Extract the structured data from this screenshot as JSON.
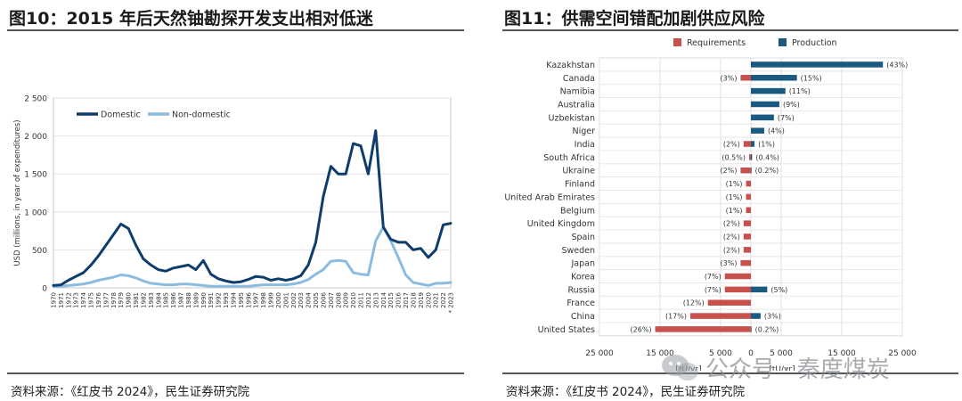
{
  "panels": [
    {
      "title": "图10：2015 年后天然铀勘探开发支出相对低迷",
      "source": "资料来源：《红皮书 2024》，民生证券研究院"
    },
    {
      "title": "图11：供需空间错配加剧供应风险",
      "source": "资料来源：《红皮书 2024》，民生证券研究院"
    }
  ],
  "watermark": {
    "text": "公众号 · 秦度煤炭"
  },
  "chart_data": [
    {
      "type": "line",
      "ylabel": "USD (millions, in year of expenditures)",
      "ylim": [
        0,
        2500
      ],
      "yticks": [
        0,
        500,
        1000,
        1500,
        2000,
        2500
      ],
      "ytick_labels": [
        "0",
        "500",
        "1 000",
        "1 500",
        "2 000",
        "2 500"
      ],
      "x": [
        "1970",
        "1971",
        "1972",
        "1973",
        "1974",
        "1975",
        "1976",
        "1977",
        "1978",
        "1979",
        "1980",
        "1981",
        "1982",
        "1983",
        "1984",
        "1985",
        "1986",
        "1987",
        "1988",
        "1989",
        "1990",
        "1991",
        "1992",
        "1993",
        "1994",
        "1995",
        "1996",
        "1997",
        "1998",
        "1999",
        "2000",
        "2001",
        "2002",
        "2003",
        "2004",
        "2005",
        "2006",
        "2007",
        "2008",
        "2009",
        "2010",
        "2011",
        "2012",
        "2013",
        "2014",
        "2015",
        "2016",
        "2017",
        "2018",
        "2019",
        "2020",
        "2021",
        "2022",
        "* 2023"
      ],
      "legend_position": "top-left",
      "series": [
        {
          "name": "Domestic",
          "color": "#0e3d6b",
          "values": [
            30,
            40,
            100,
            150,
            200,
            300,
            420,
            560,
            700,
            840,
            780,
            560,
            380,
            300,
            240,
            220,
            260,
            280,
            300,
            240,
            360,
            180,
            120,
            90,
            70,
            80,
            110,
            150,
            140,
            100,
            120,
            100,
            120,
            160,
            300,
            600,
            1200,
            1600,
            1500,
            1500,
            1900,
            1870,
            1500,
            2070,
            800,
            640,
            600,
            600,
            500,
            520,
            400,
            500,
            830,
            850
          ]
        },
        {
          "name": "Non-domestic",
          "color": "#8bbce0",
          "values": [
            20,
            20,
            30,
            40,
            50,
            70,
            100,
            120,
            140,
            170,
            160,
            130,
            90,
            60,
            50,
            40,
            40,
            50,
            50,
            40,
            30,
            20,
            20,
            20,
            20,
            20,
            20,
            30,
            40,
            40,
            40,
            40,
            50,
            70,
            110,
            180,
            240,
            350,
            360,
            350,
            200,
            180,
            170,
            620,
            800,
            620,
            400,
            170,
            70,
            50,
            30,
            60,
            60,
            70
          ]
        }
      ]
    },
    {
      "type": "bar",
      "orientation": "horizontal",
      "x_unit_left": "[tU/yr]",
      "x_unit_right": "[tU/yr]",
      "xlim": [
        -25000,
        25000
      ],
      "xticks": [
        -25000,
        -15000,
        -5000,
        0,
        5000,
        15000,
        25000
      ],
      "xtick_labels": [
        "25 000",
        "15 000",
        "5 000",
        "0",
        "5 000",
        "15 000",
        "25 000"
      ],
      "legend_position": "top",
      "series": [
        {
          "name": "Requirements",
          "color": "#c8504b"
        },
        {
          "name": "Production",
          "color": "#1a5a80"
        }
      ],
      "categories": [
        {
          "name": "Kazakhstan",
          "req": 0,
          "prod": 21800,
          "req_label": "",
          "prod_label": "(43%)"
        },
        {
          "name": "Canada",
          "req": 1700,
          "prod": 7600,
          "req_label": "(3%)",
          "prod_label": "(15%)"
        },
        {
          "name": "Namibia",
          "req": 0,
          "prod": 5700,
          "req_label": "",
          "prod_label": "(11%)"
        },
        {
          "name": "Australia",
          "req": 0,
          "prod": 4700,
          "req_label": "",
          "prod_label": "(9%)"
        },
        {
          "name": "Uzbekistan",
          "req": 0,
          "prod": 3800,
          "req_label": "",
          "prod_label": "(7%)"
        },
        {
          "name": "Niger",
          "req": 0,
          "prod": 2200,
          "req_label": "",
          "prod_label": "(4%)"
        },
        {
          "name": "India",
          "req": 1200,
          "prod": 600,
          "req_label": "(2%)",
          "prod_label": "(1%)"
        },
        {
          "name": "South Africa",
          "req": 300,
          "prod": 200,
          "req_label": "(0.5%)",
          "prod_label": "(0.4%)"
        },
        {
          "name": "Ukraine",
          "req": 1700,
          "prod": 100,
          "req_label": "(2%)",
          "prod_label": "(0.2%)"
        },
        {
          "name": "Finland",
          "req": 800,
          "prod": 0,
          "req_label": "(1%)",
          "prod_label": ""
        },
        {
          "name": "United Arab Emirates",
          "req": 800,
          "prod": 0,
          "req_label": "(1%)",
          "prod_label": ""
        },
        {
          "name": "Belgium",
          "req": 800,
          "prod": 0,
          "req_label": "(1%)",
          "prod_label": ""
        },
        {
          "name": "United Kingdom",
          "req": 1200,
          "prod": 0,
          "req_label": "(2%)",
          "prod_label": ""
        },
        {
          "name": "Spain",
          "req": 1200,
          "prod": 0,
          "req_label": "(2%)",
          "prod_label": ""
        },
        {
          "name": "Sweden",
          "req": 1200,
          "prod": 0,
          "req_label": "(2%)",
          "prod_label": ""
        },
        {
          "name": "Japan",
          "req": 1700,
          "prod": 0,
          "req_label": "(3%)",
          "prod_label": ""
        },
        {
          "name": "Korea",
          "req": 4300,
          "prod": 0,
          "req_label": "(7%)",
          "prod_label": ""
        },
        {
          "name": "Russia",
          "req": 4300,
          "prod": 2700,
          "req_label": "(7%)",
          "prod_label": "(5%)"
        },
        {
          "name": "France",
          "req": 7100,
          "prod": 0,
          "req_label": "(12%)",
          "prod_label": ""
        },
        {
          "name": "China",
          "req": 10000,
          "prod": 1600,
          "req_label": "(17%)",
          "prod_label": "(3%)"
        },
        {
          "name": "United States",
          "req": 15800,
          "prod": 100,
          "req_label": "(26%)",
          "prod_label": "(0.2%)"
        }
      ]
    }
  ]
}
